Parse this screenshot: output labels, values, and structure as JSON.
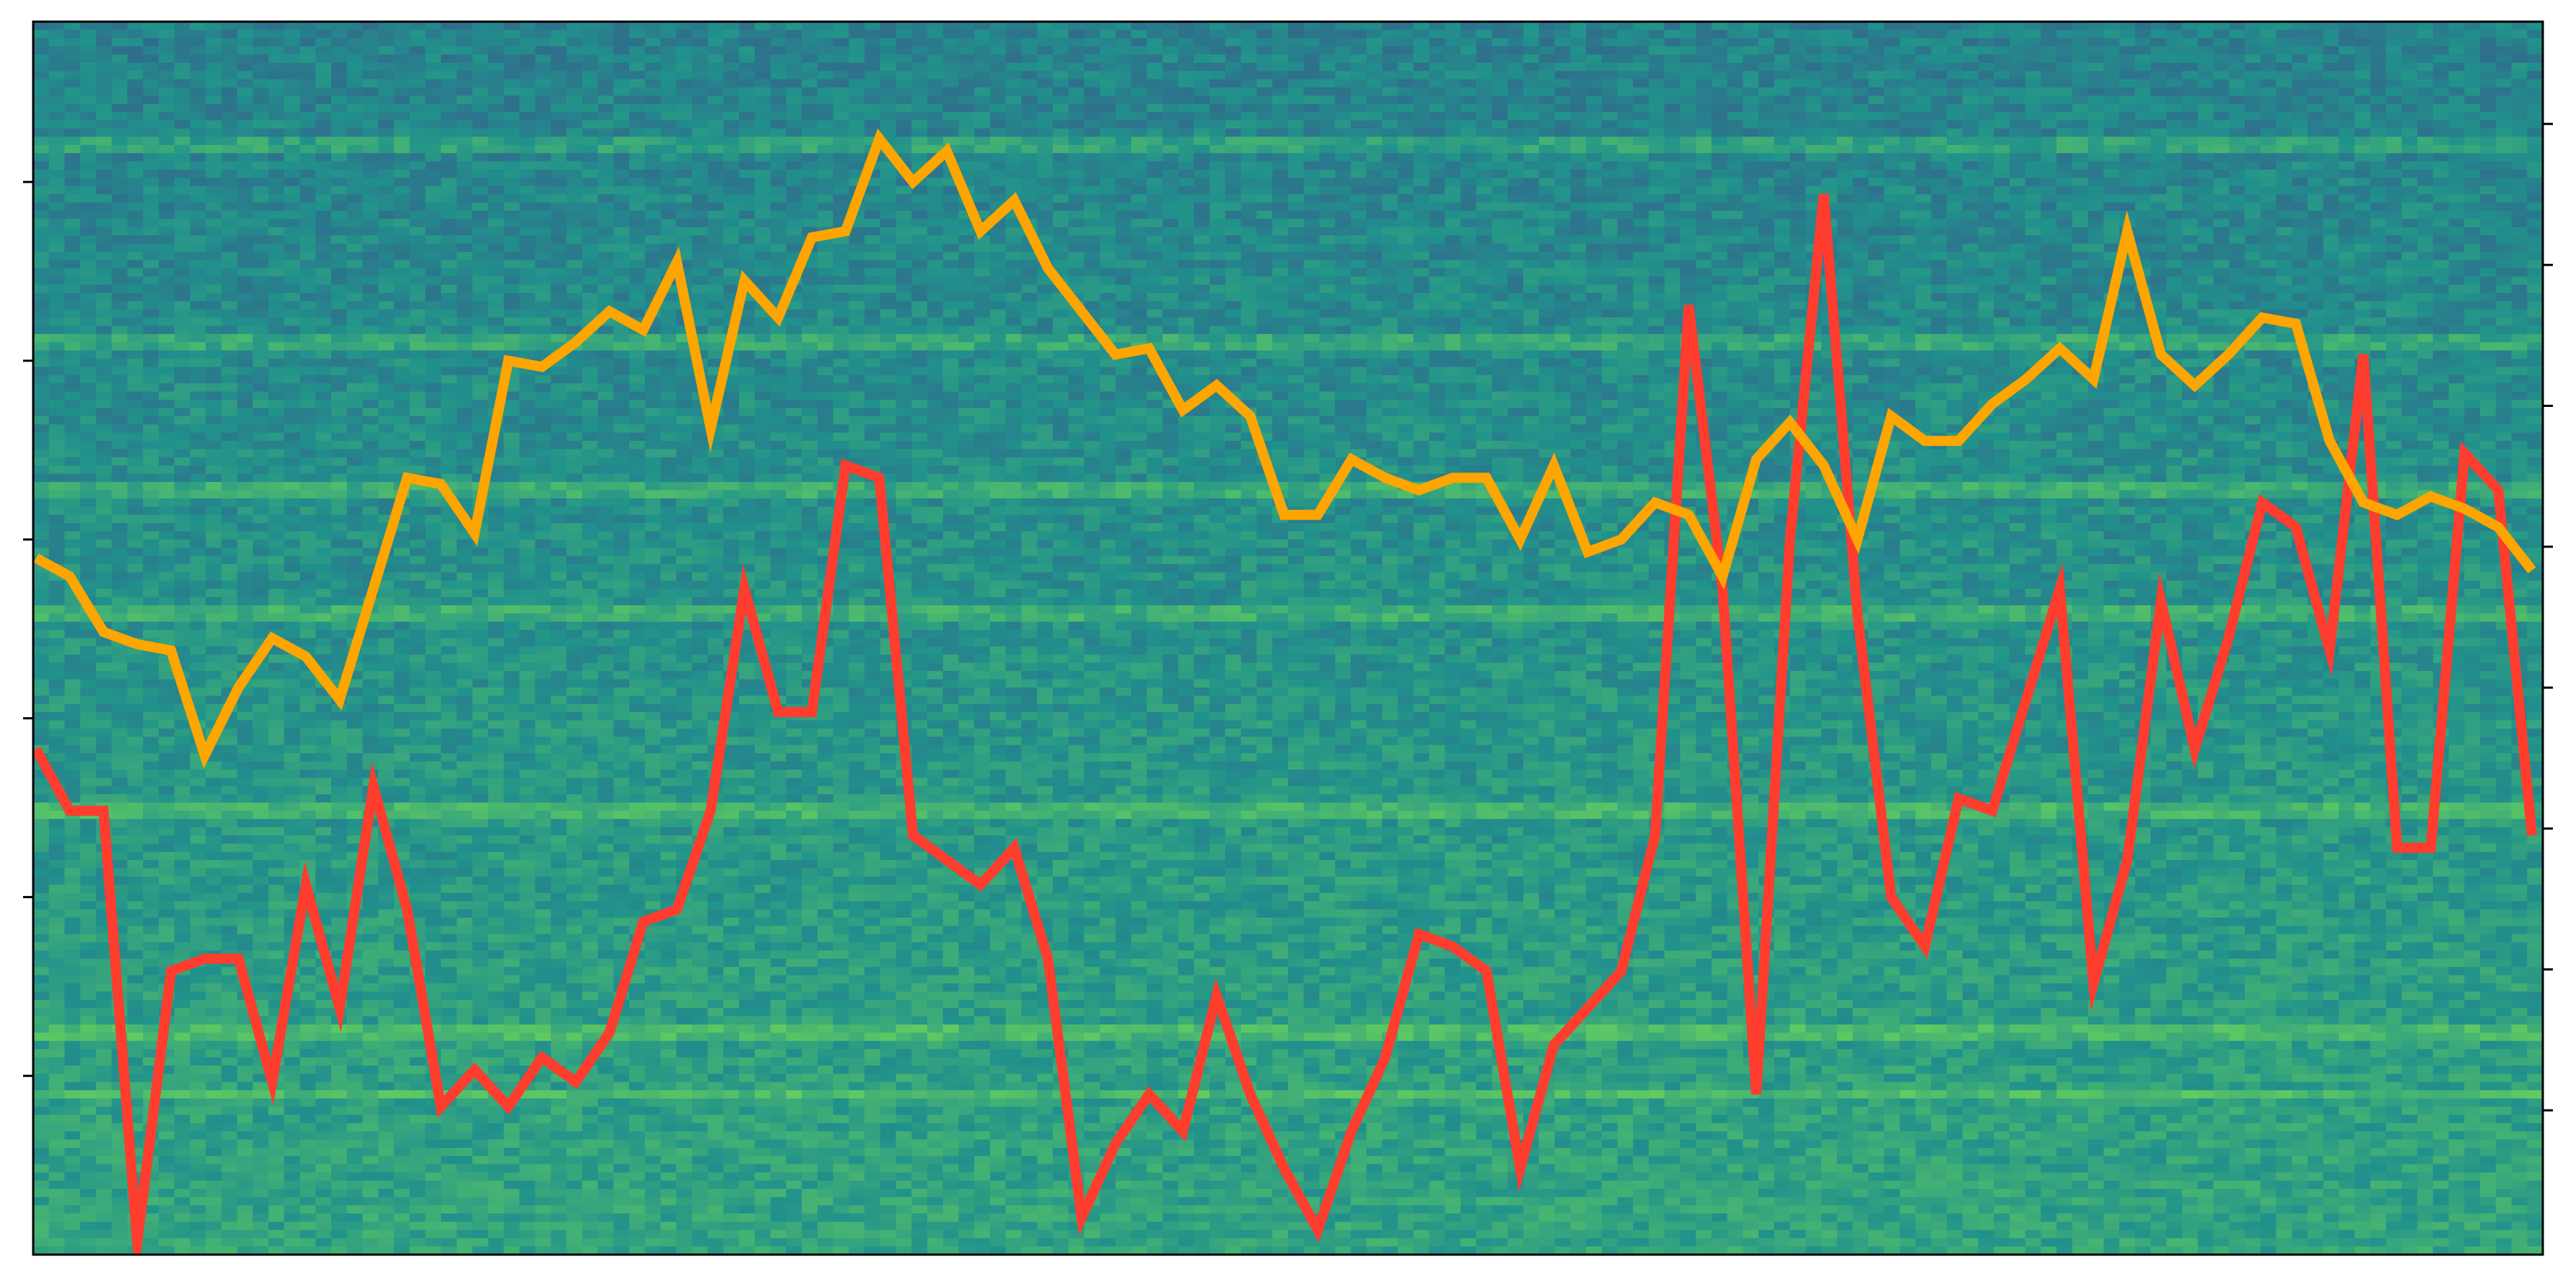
{
  "chart_data": {
    "type": "line",
    "title": "",
    "xlabel": "",
    "ylabel": "",
    "background": {
      "kind": "spectrogram-heatmap",
      "colormap": "viridis",
      "harmonic_bands": [
        0.9,
        0.74,
        0.62,
        0.52,
        0.36,
        0.18,
        0.13
      ]
    },
    "x": [
      0,
      1,
      2,
      3,
      4,
      5,
      6,
      7,
      8,
      9,
      10,
      11,
      12,
      13,
      14,
      15,
      16,
      17,
      18,
      19,
      20,
      21,
      22,
      23,
      24,
      25,
      26,
      27,
      28,
      29,
      30,
      31,
      32,
      33,
      34,
      35,
      36,
      37,
      38,
      39,
      40,
      41,
      42,
      43,
      44,
      45,
      46,
      47,
      48,
      49,
      50,
      51,
      52,
      53,
      54,
      55,
      56,
      57,
      58,
      59,
      60,
      61,
      62,
      63,
      64,
      65,
      66,
      67,
      68,
      69,
      70,
      71,
      72,
      73,
      74
    ],
    "xlim": [
      0,
      74
    ],
    "series": [
      {
        "color": "#ff3d2e",
        "axis": "left",
        "values": [
          0.41,
          0.36,
          0.36,
          0.01,
          0.23,
          0.24,
          0.24,
          0.14,
          0.3,
          0.2,
          0.38,
          0.28,
          0.12,
          0.15,
          0.12,
          0.16,
          0.14,
          0.18,
          0.27,
          0.28,
          0.36,
          0.54,
          0.44,
          0.44,
          0.64,
          0.63,
          0.34,
          0.32,
          0.3,
          0.33,
          0.24,
          0.03,
          0.09,
          0.13,
          0.1,
          0.21,
          0.13,
          0.07,
          0.02,
          0.1,
          0.16,
          0.26,
          0.25,
          0.23,
          0.07,
          0.17,
          0.2,
          0.23,
          0.34,
          0.77,
          0.54,
          0.13,
          0.58,
          0.86,
          0.52,
          0.29,
          0.25,
          0.37,
          0.36,
          0.45,
          0.54,
          0.22,
          0.32,
          0.53,
          0.41,
          0.5,
          0.61,
          0.59,
          0.49,
          0.73,
          0.33,
          0.33,
          0.65,
          0.62,
          0.34
        ]
      },
      {
        "color": "#ffa500",
        "axis": "right",
        "values": [
          0.565,
          0.55,
          0.505,
          0.495,
          0.49,
          0.405,
          0.46,
          0.5,
          0.485,
          0.45,
          0.54,
          0.63,
          0.625,
          0.585,
          0.725,
          0.72,
          0.74,
          0.765,
          0.75,
          0.805,
          0.67,
          0.79,
          0.76,
          0.825,
          0.83,
          0.905,
          0.87,
          0.895,
          0.83,
          0.855,
          0.8,
          0.765,
          0.73,
          0.735,
          0.685,
          0.705,
          0.68,
          0.6,
          0.6,
          0.645,
          0.63,
          0.62,
          0.63,
          0.63,
          0.58,
          0.64,
          0.57,
          0.58,
          0.61,
          0.6,
          0.55,
          0.645,
          0.675,
          0.64,
          0.58,
          0.68,
          0.66,
          0.66,
          0.69,
          0.71,
          0.735,
          0.71,
          0.83,
          0.73,
          0.705,
          0.73,
          0.76,
          0.755,
          0.66,
          0.61,
          0.6,
          0.615,
          0.605,
          0.59,
          0.555
        ]
      }
    ],
    "left_axis": {
      "ylim": [
        0,
        1
      ],
      "tick_count": 6,
      "tick_labels": []
    },
    "right_axis": {
      "ylim": [
        0,
        1
      ],
      "tick_count": 8,
      "tick_labels": []
    },
    "grid": false,
    "legend": "none"
  }
}
